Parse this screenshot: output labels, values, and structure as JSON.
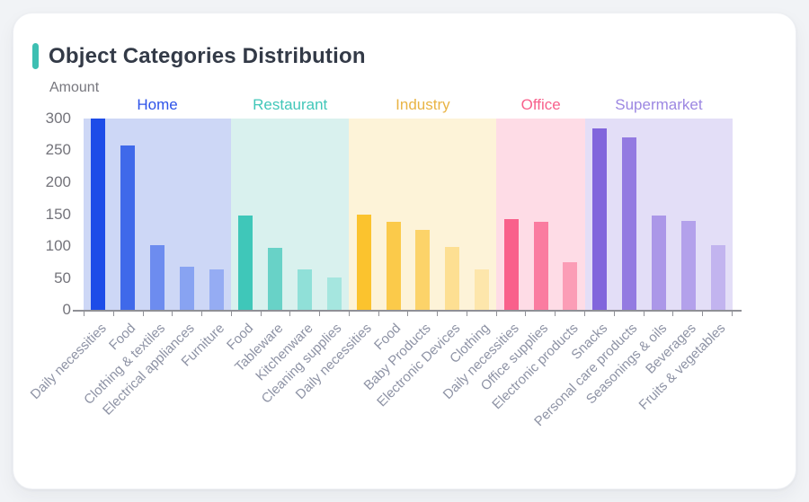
{
  "card": {
    "title": "Object Categories Distribution",
    "accent_color": "#3dbfb2"
  },
  "chart_data": {
    "type": "bar",
    "title": "Object Categories Distribution",
    "xlabel": "",
    "ylabel": "Amount",
    "ylim": [
      0,
      300
    ],
    "y_ticks": [
      0,
      50,
      100,
      150,
      200,
      250,
      300
    ],
    "grid": false,
    "legend_position": "top-inside",
    "groups": [
      {
        "name": "Home",
        "label_color": "#2d53e9",
        "band_color": "#cdd7f6",
        "bars": [
          {
            "label": "Daily necessities",
            "value": 300,
            "color": "#1d4ce8"
          },
          {
            "label": "Food",
            "value": 258,
            "color": "#3f69ea"
          },
          {
            "label": "Clothing & textiles",
            "value": 102,
            "color": "#6d8cef"
          },
          {
            "label": "Electrical appliances",
            "value": 68,
            "color": "#88a3f2"
          },
          {
            "label": "Furniture",
            "value": 63,
            "color": "#95acf3"
          }
        ]
      },
      {
        "name": "Restaurant",
        "label_color": "#41c7b9",
        "band_color": "#d9f1ee",
        "bars": [
          {
            "label": "Food",
            "value": 148,
            "color": "#3fc7b9"
          },
          {
            "label": "Tableware",
            "value": 97,
            "color": "#68d2c7"
          },
          {
            "label": "Kitchenware",
            "value": 64,
            "color": "#90e0d8"
          },
          {
            "label": "Cleaning supplies",
            "value": 51,
            "color": "#a5e6df"
          }
        ]
      },
      {
        "name": "Industry",
        "label_color": "#e9b445",
        "band_color": "#fdf3d8",
        "bars": [
          {
            "label": "Daily necessities",
            "value": 150,
            "color": "#fbc32e"
          },
          {
            "label": "Food",
            "value": 138,
            "color": "#fbca4a"
          },
          {
            "label": "Baby Products",
            "value": 126,
            "color": "#fcd369"
          },
          {
            "label": "Electronic Devices",
            "value": 99,
            "color": "#fddf92"
          },
          {
            "label": "Clothing",
            "value": 63,
            "color": "#fde6ab"
          }
        ]
      },
      {
        "name": "Office",
        "label_color": "#f8618c",
        "band_color": "#fedce6",
        "bars": [
          {
            "label": "Daily necessities",
            "value": 142,
            "color": "#f9608b"
          },
          {
            "label": "Office supplies",
            "value": 138,
            "color": "#fa7ca0"
          },
          {
            "label": "Electronic products",
            "value": 74,
            "color": "#fb9db6"
          }
        ]
      },
      {
        "name": "Supermarket",
        "label_color": "#9c87e2",
        "band_color": "#e3def7",
        "bars": [
          {
            "label": "Snacks",
            "value": 285,
            "color": "#8165dc"
          },
          {
            "label": "Personal care products",
            "value": 271,
            "color": "#937ae1"
          },
          {
            "label": "Seasonings & oils",
            "value": 148,
            "color": "#ab97e8"
          },
          {
            "label": "Beverages",
            "value": 140,
            "color": "#b3a1eb"
          },
          {
            "label": "Fruits & vegetables",
            "value": 101,
            "color": "#c2b4ef"
          }
        ]
      }
    ]
  }
}
